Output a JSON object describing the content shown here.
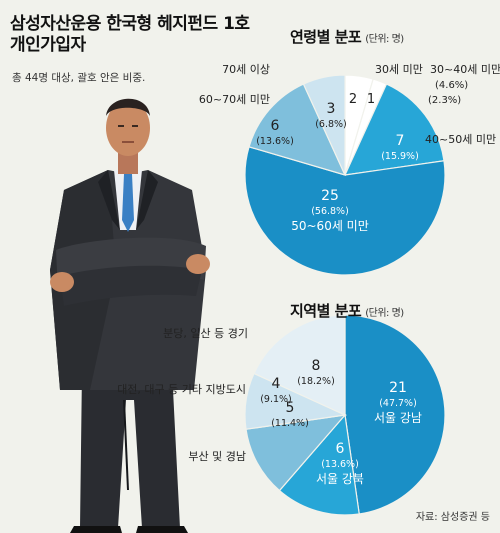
{
  "header": {
    "title_line1": "삼성자산운용 한국형 헤지펀드 1호",
    "title_line2": "개인가입자",
    "note": "총 44명 대상, 괄호 안은 비중."
  },
  "source": "자료: 삼성증권 등",
  "chart_data": [
    {
      "type": "pie",
      "title": "연령별 분포",
      "unit": "(단위: 명)",
      "slices": [
        {
          "label": "50~60세 미만",
          "value": 25,
          "percent": "(56.8%)",
          "color": "#1a8fc6"
        },
        {
          "label": "60~70세 미만",
          "value": 6,
          "percent": "(13.6%)",
          "color": "#7fbfdc"
        },
        {
          "label": "70세 이상",
          "value": 3,
          "percent": "(6.8%)",
          "color": "#cde4f0"
        },
        {
          "label": "30세 미만",
          "value": 2,
          "percent": "(4.6%)",
          "color": "#ffffff"
        },
        {
          "label": "30~40세 미만",
          "value": 1,
          "percent": "(2.3%)",
          "color": "#ffffff"
        },
        {
          "label": "40~50세 미만",
          "value": 7,
          "percent": "(15.9%)",
          "color": "#27a6d7"
        }
      ]
    },
    {
      "type": "pie",
      "title": "지역별 분포",
      "unit": "(단위: 명)",
      "slices": [
        {
          "label": "서울 강남",
          "value": 21,
          "percent": "(47.7%)",
          "color": "#1a8fc6"
        },
        {
          "label": "서울 강북",
          "value": 6,
          "percent": "(13.6%)",
          "color": "#27a6d7"
        },
        {
          "label": "부산 및 경남",
          "value": 5,
          "percent": "(11.4%)",
          "color": "#7fbfdc"
        },
        {
          "label": "대전, 대구 등 기타 지방도시",
          "value": 4,
          "percent": "(9.1%)",
          "color": "#cde4f0"
        },
        {
          "label": "분당, 일산 등 경기",
          "value": 8,
          "percent": "(18.2%)",
          "color": "#e4eff5"
        }
      ]
    }
  ]
}
